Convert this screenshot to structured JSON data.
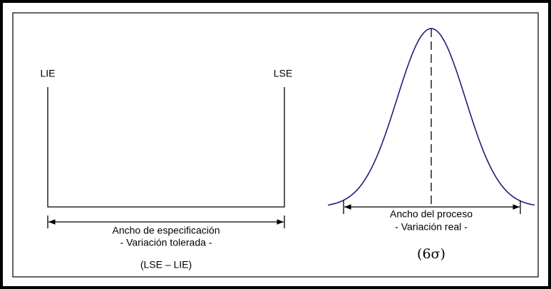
{
  "spec": {
    "lower_label": "LIE",
    "upper_label": "LSE",
    "width_title": "Ancho de especificación",
    "width_subtitle": "- Variación tolerada -",
    "formula": "(LSE – LIE)"
  },
  "process": {
    "width_title": "Ancho del proceso",
    "width_subtitle": "- Variación real -",
    "formula": "(6σ)"
  }
}
